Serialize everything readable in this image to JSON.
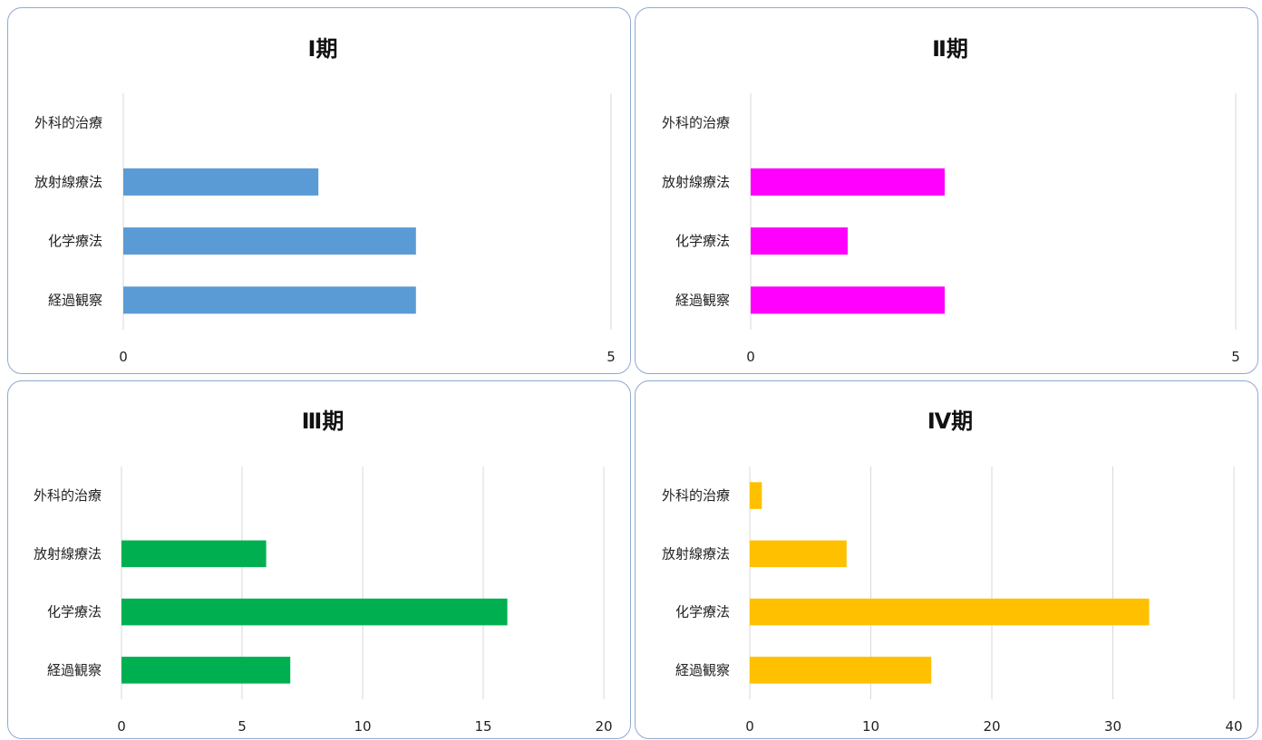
{
  "chart_data": [
    {
      "type": "bar",
      "title": "Ⅰ期",
      "categories": [
        "外科的治療",
        "放射線療法",
        "化学療法",
        "経過観察"
      ],
      "values": [
        0,
        2,
        3,
        3
      ],
      "xlim": [
        0,
        5
      ],
      "xticks": [
        0,
        5
      ],
      "color": "#5b9bd5",
      "grid": true
    },
    {
      "type": "bar",
      "title": "Ⅱ期",
      "categories": [
        "外科的治療",
        "放射線療法",
        "化学療法",
        "経過観察"
      ],
      "values": [
        0,
        2,
        1,
        2
      ],
      "xlim": [
        0,
        5
      ],
      "xticks": [
        0,
        5
      ],
      "color": "#ff00ff",
      "grid": true
    },
    {
      "type": "bar",
      "title": "Ⅲ期",
      "categories": [
        "外科的治療",
        "放射線療法",
        "化学療法",
        "経過観察"
      ],
      "values": [
        0,
        6,
        16,
        7
      ],
      "xlim": [
        0,
        20
      ],
      "xticks": [
        0,
        5,
        10,
        15,
        20
      ],
      "color": "#00b050",
      "grid": true
    },
    {
      "type": "bar",
      "title": "Ⅳ期",
      "categories": [
        "外科的治療",
        "放射線療法",
        "化学療法",
        "経過観察"
      ],
      "values": [
        1,
        8,
        33,
        15
      ],
      "xlim": [
        0,
        40
      ],
      "xticks": [
        0,
        10,
        20,
        30,
        40
      ],
      "color": "#ffc000",
      "grid": true
    }
  ]
}
